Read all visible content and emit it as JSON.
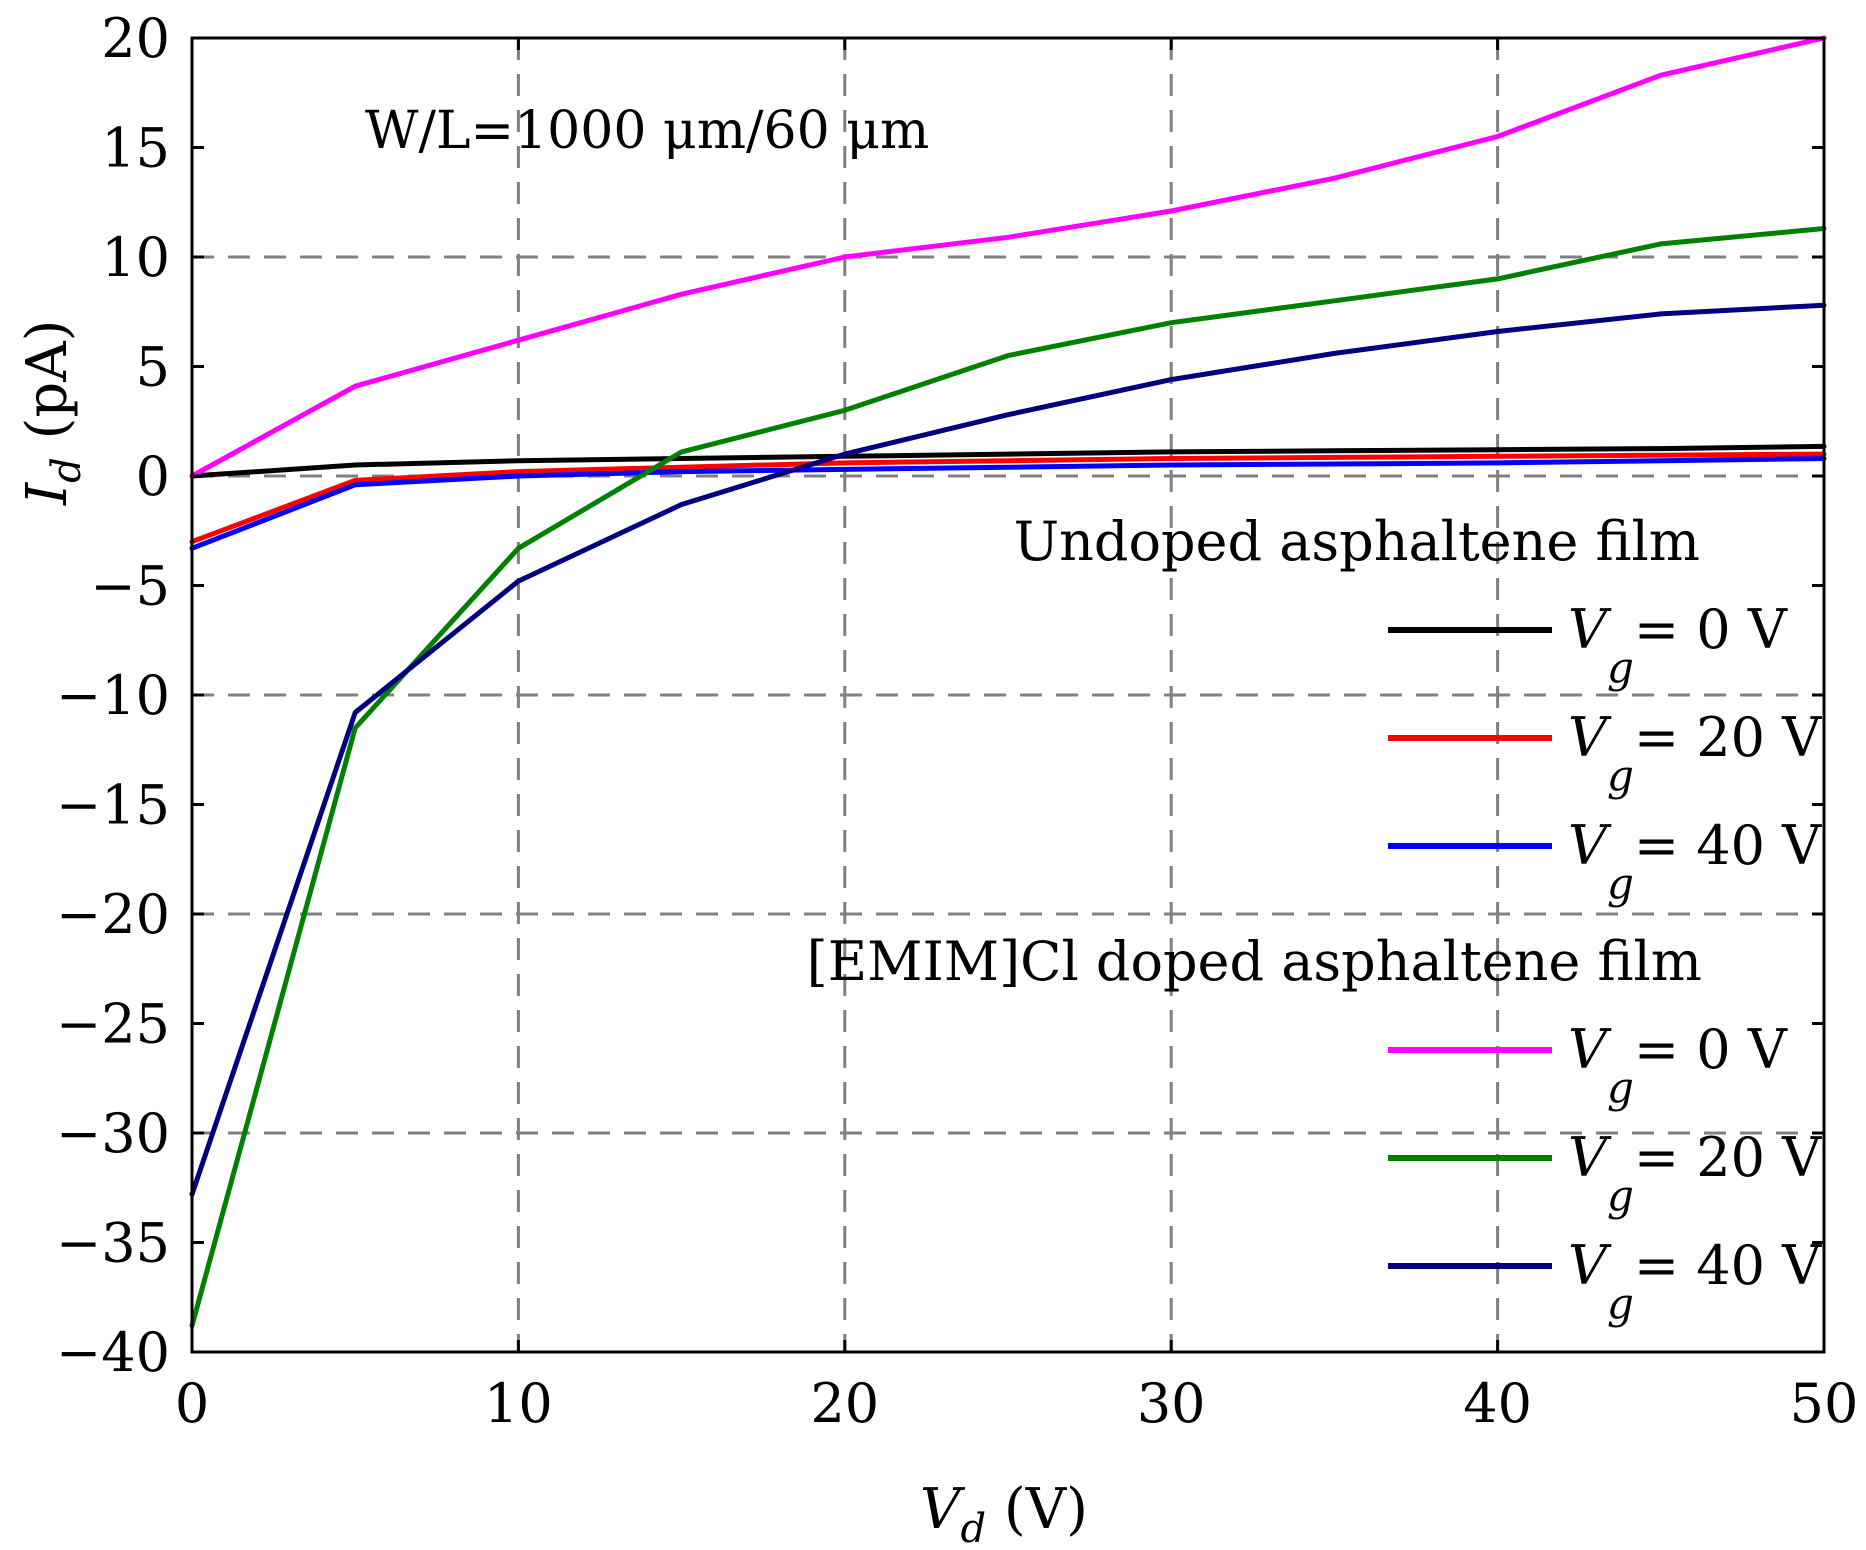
{
  "chart_data": {
    "type": "line",
    "xlabel": "V",
    "xlabel_sub": "d",
    "xlabel_unit": " (V)",
    "ylabel": "I",
    "ylabel_sub": "d",
    "ylabel_unit": " (pA)",
    "xlim": [
      0,
      50
    ],
    "ylim": [
      -40,
      20
    ],
    "x_ticks": [
      "0",
      "10",
      "20",
      "30",
      "40",
      "50"
    ],
    "y_ticks": [
      "20",
      "15",
      "10",
      "5",
      "0",
      "−5",
      "−10",
      "−15",
      "−20",
      "−25",
      "−30",
      "−35",
      "−40"
    ],
    "x_tick_values": [
      0,
      10,
      20,
      30,
      40,
      50
    ],
    "y_tick_values": [
      20,
      15,
      10,
      5,
      0,
      -5,
      -10,
      -15,
      -20,
      -25,
      -30,
      -35,
      -40
    ],
    "grid_x": [
      10,
      20,
      30,
      40
    ],
    "grid_y": [
      10,
      0,
      -10,
      -20,
      -30
    ],
    "grid": true,
    "annotation": "W/L=1000 μm/60 μm",
    "legend_placement": "right",
    "legend_groups": [
      {
        "title": "Undoped asphaltene film",
        "series": [
          {
            "label_var": "V",
            "label_sub": "g",
            "label_rest": "= 0 V",
            "color": "#000000",
            "x": [
              0,
              5,
              10,
              15,
              20,
              25,
              30,
              35,
              40,
              45,
              50
            ],
            "y": [
              0,
              0.5,
              0.7,
              0.8,
              0.9,
              1.0,
              1.1,
              1.15,
              1.2,
              1.25,
              1.35
            ]
          },
          {
            "label_var": "V",
            "label_sub": "g",
            "label_rest": "= 20 V",
            "color": "#ff0000",
            "x": [
              0,
              5,
              10,
              15,
              20,
              25,
              30,
              35,
              40,
              45,
              50
            ],
            "y": [
              -3.0,
              -0.2,
              0.2,
              0.4,
              0.6,
              0.7,
              0.8,
              0.85,
              0.9,
              0.95,
              1.0
            ]
          },
          {
            "label_var": "V",
            "label_sub": "g",
            "label_rest": "= 40 V",
            "color": "#0000ff",
            "x": [
              0,
              5,
              10,
              15,
              20,
              25,
              30,
              35,
              40,
              45,
              50
            ],
            "y": [
              -3.3,
              -0.4,
              0.0,
              0.2,
              0.3,
              0.4,
              0.5,
              0.55,
              0.6,
              0.7,
              0.8
            ]
          }
        ]
      },
      {
        "title": "[EMIM]Cl doped asphaltene film",
        "series": [
          {
            "label_var": "V",
            "label_sub": "g",
            "label_rest": "= 0 V",
            "color": "#ff00ff",
            "x": [
              0,
              5,
              10,
              15,
              20,
              25,
              30,
              35,
              40,
              45,
              50
            ],
            "y": [
              0,
              4.1,
              6.2,
              8.3,
              10.0,
              10.9,
              12.1,
              13.6,
              15.5,
              18.3,
              20.0
            ]
          },
          {
            "label_var": "V",
            "label_sub": "g",
            "label_rest": "= 20 V",
            "color": "#008000",
            "x": [
              0,
              5,
              10,
              15,
              20,
              25,
              30,
              35,
              40,
              45,
              50
            ],
            "y": [
              -38.8,
              -11.5,
              -3.3,
              1.1,
              3.0,
              5.5,
              7.0,
              8.0,
              9.0,
              10.6,
              11.3
            ]
          },
          {
            "label_var": "V",
            "label_sub": "g",
            "label_rest": "= 40 V",
            "color": "#000080",
            "x": [
              0,
              5,
              10,
              15,
              20,
              25,
              30,
              35,
              40,
              45,
              50
            ],
            "y": [
              -32.8,
              -10.8,
              -4.8,
              -1.3,
              1.0,
              2.8,
              4.4,
              5.6,
              6.6,
              7.4,
              7.8
            ]
          }
        ]
      }
    ]
  }
}
